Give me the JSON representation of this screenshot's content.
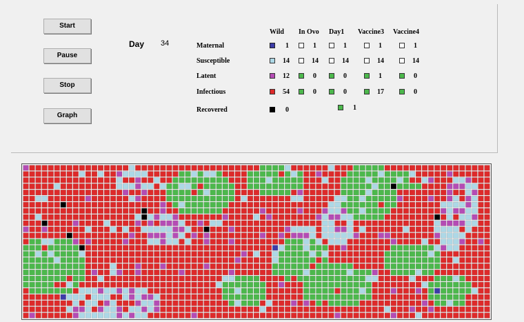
{
  "controls": {
    "start_label": "Start",
    "pause_label": "Pause",
    "stop_label": "Stop",
    "graph_label": "Graph"
  },
  "day": {
    "label": "Day",
    "value": "34"
  },
  "columns": [
    "Wild",
    "In Ovo",
    "Day1",
    "Vaccine3",
    "Vaccine4"
  ],
  "states": [
    {
      "label": "Maternal",
      "color": "#3c3ca8",
      "values": [
        "1",
        "1",
        "1",
        "1",
        "1"
      ]
    },
    {
      "label": "Susceptible",
      "color": "#add8e6",
      "values": [
        "14",
        "14",
        "14",
        "14",
        "14"
      ]
    },
    {
      "label": "Latent",
      "color": "#b44cb4",
      "values": [
        "12",
        "0",
        "0",
        "1",
        "0"
      ]
    },
    {
      "label": "Infectious",
      "color": "#dd2a2a",
      "values": [
        "54",
        "0",
        "0",
        "17",
        "0"
      ]
    },
    {
      "label": "Recovered",
      "color": "#000000",
      "values": [
        "0",
        "",
        "",
        "1",
        ""
      ]
    }
  ],
  "cell_colors": {
    "maternal": "#3c3ca8",
    "susceptible": "#add8e6",
    "latent": "#b44cb4",
    "infectious": "#dd2a2a",
    "recovered": "#000000",
    "vaccinated": "#4cb84c",
    "empty": "#ffffff"
  }
}
